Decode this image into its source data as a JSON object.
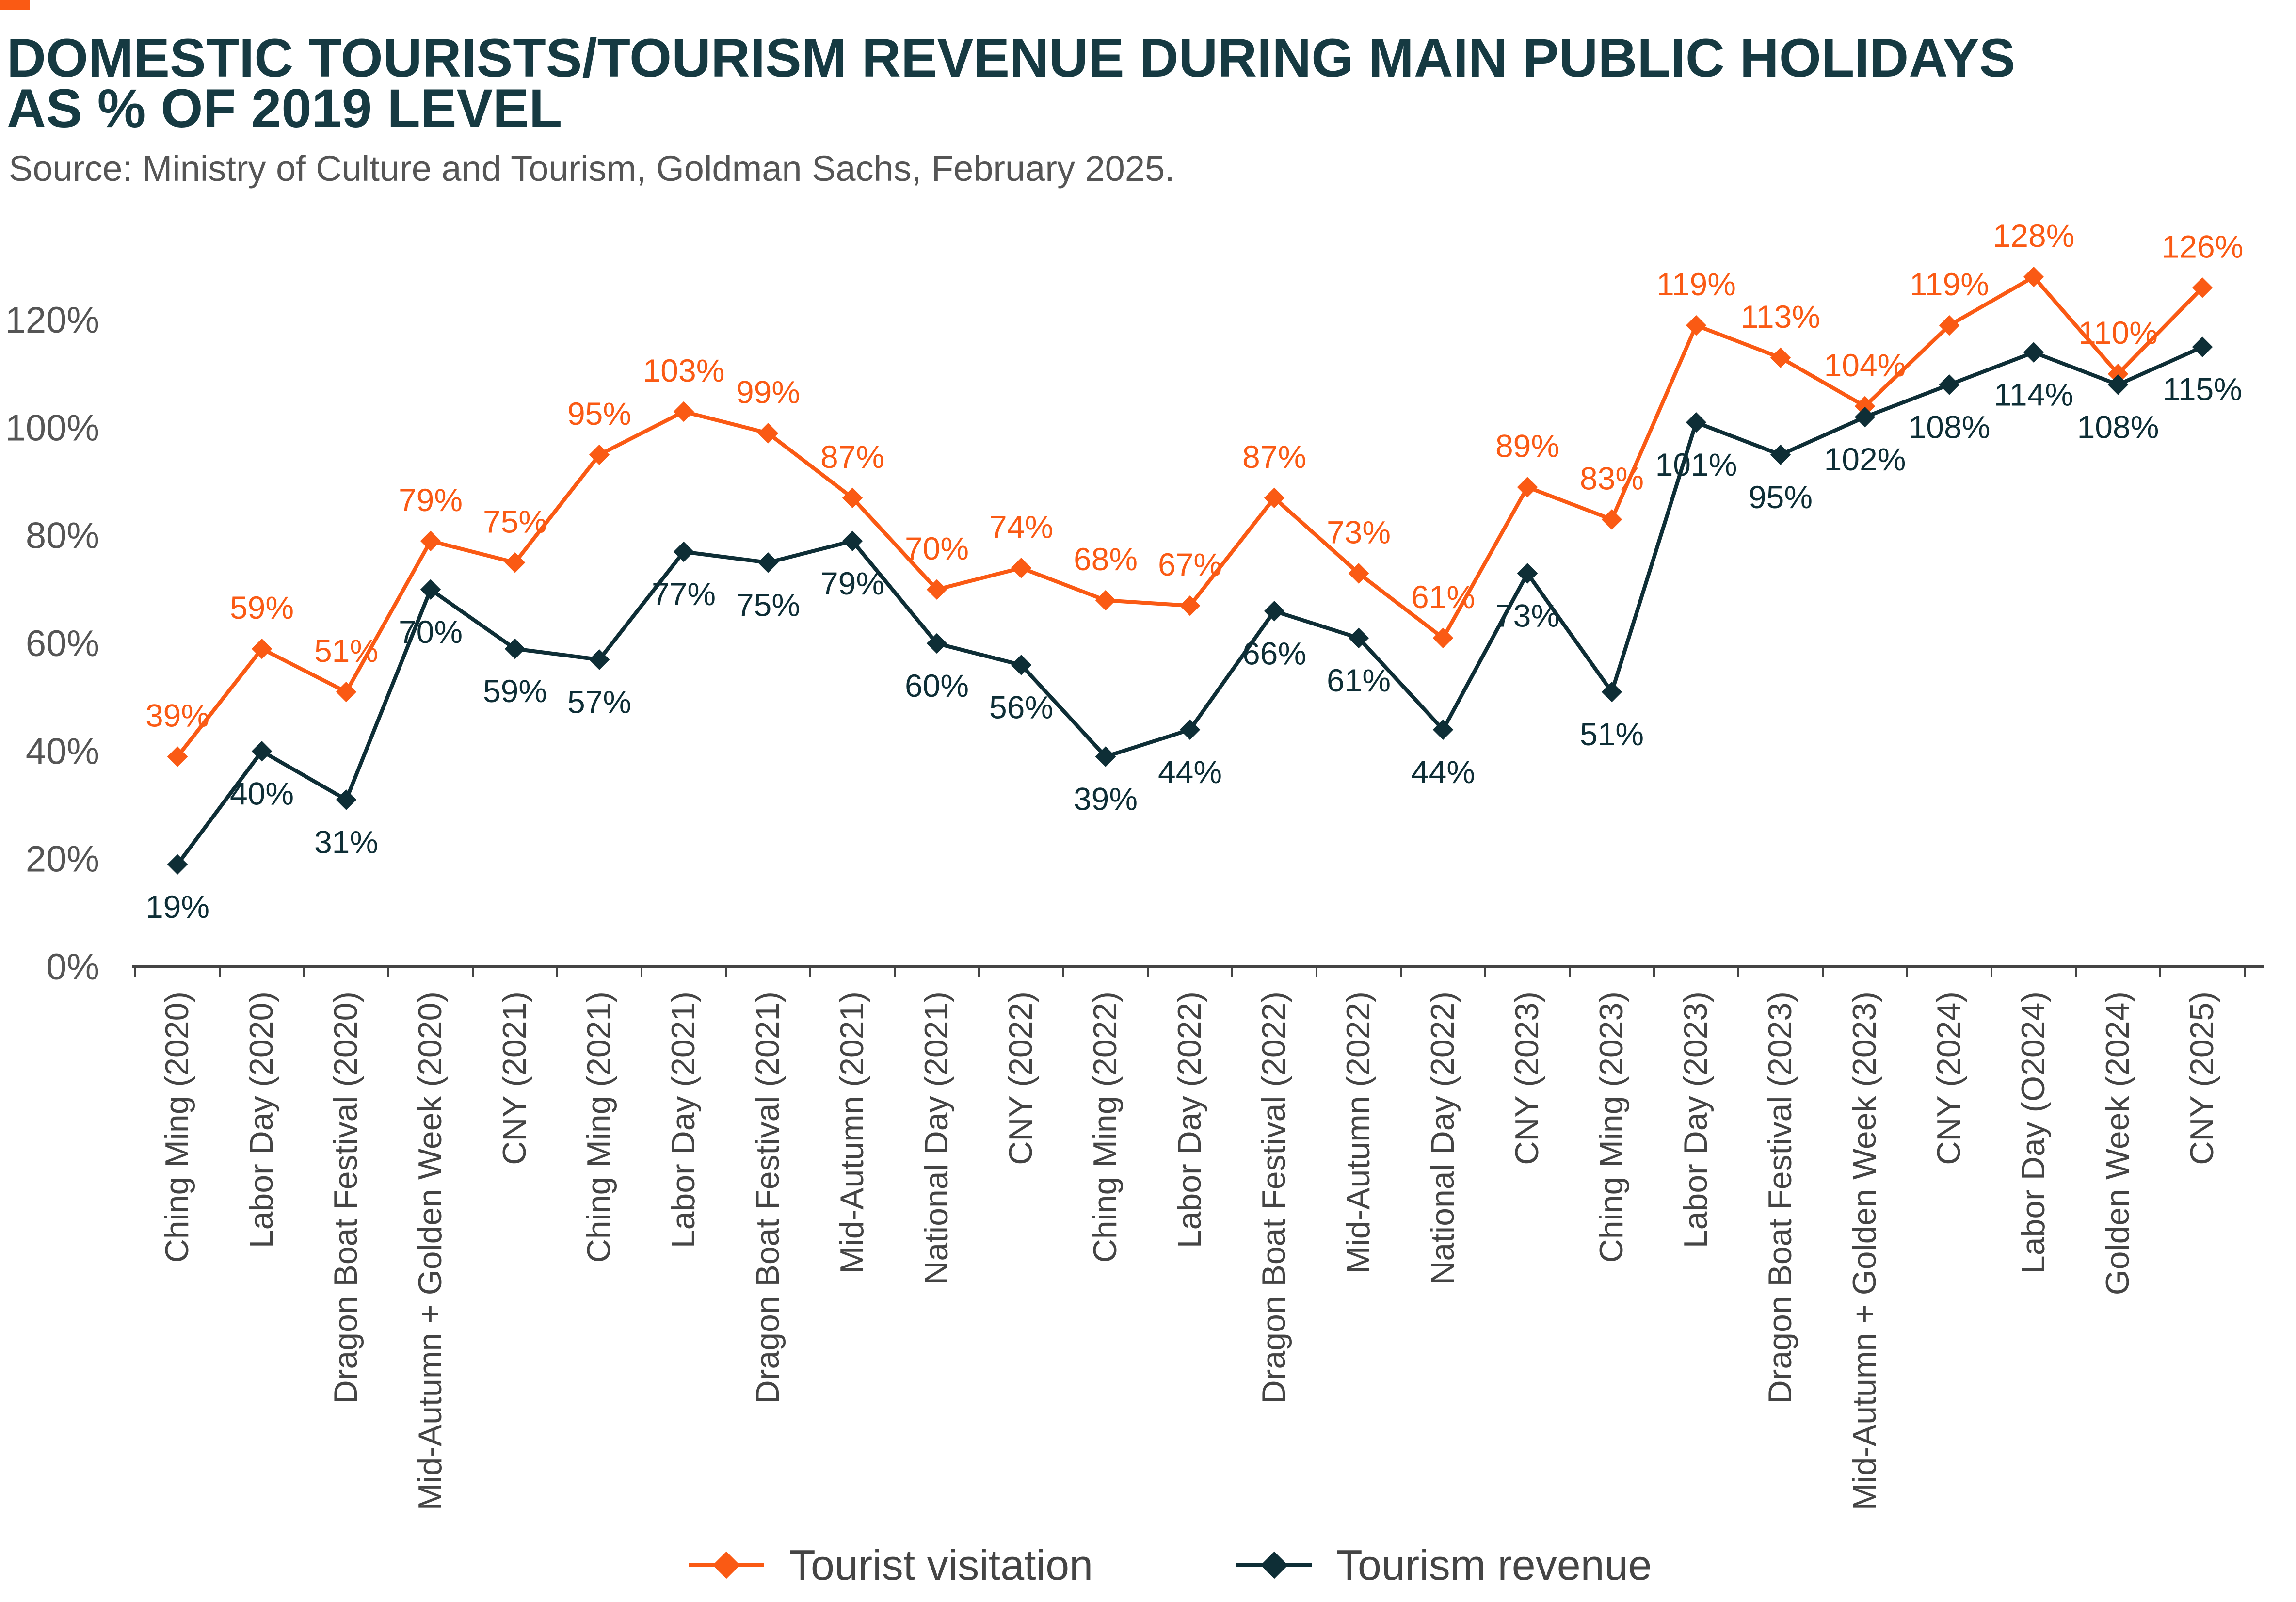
{
  "colors": {
    "accent": "#FA5A14",
    "dark": "#0E2E36",
    "title": "#163A42",
    "subtitle": "#555555",
    "axis": "#444444"
  },
  "chart_data": {
    "type": "line",
    "title_lines": [
      "DOMESTIC TOURISTS/TOURISM REVENUE DURING MAIN PUBLIC HOLIDAYS",
      "AS % OF 2019 LEVEL"
    ],
    "subtitle": "Source: Ministry of Culture and Tourism, Goldman Sachs, February 2025.",
    "xlabel": "",
    "ylabel": "",
    "ylim": [
      0,
      120
    ],
    "yticks": [
      0,
      20,
      40,
      60,
      80,
      100,
      120
    ],
    "ytick_labels": [
      "0%",
      "20%",
      "40%",
      "60%",
      "80%",
      "100%",
      "120%"
    ],
    "grid": false,
    "legend_position": "bottom",
    "categories": [
      "Ching Ming (2020)",
      "Labor Day (2020)",
      "Dragon Boat Festival (2020)",
      "Mid-Autumn + Golden Week (2020)",
      "CNY (2021)",
      "Ching Ming (2021)",
      "Labor Day (2021)",
      "Dragon Boat Festival (2021)",
      "Mid-Autumn (2021)",
      "National Day (2021)",
      "CNY (2022)",
      "Ching Ming (2022)",
      "Labor Day (2022)",
      "Dragon Boat Festival (2022)",
      "Mid-Autumn (2022)",
      "National Day (2022)",
      "CNY (2023)",
      "Ching Ming (2023)",
      "Labor Day (2023)",
      "Dragon Boat Festival (2023)",
      "Mid-Autumn + Golden Week (2023)",
      "CNY (2024)",
      "Labor Day (O2024)",
      "Golden Week (2024)",
      "CNY (2025)"
    ],
    "series": [
      {
        "name": "Tourist visitation",
        "color": "#FA5A14",
        "label_position": "above",
        "values": [
          39,
          59,
          51,
          79,
          75,
          95,
          103,
          99,
          87,
          70,
          74,
          68,
          67,
          87,
          73,
          61,
          89,
          83,
          119,
          113,
          104,
          119,
          128,
          110,
          126
        ],
        "labels": [
          "39%",
          "59%",
          "51%",
          "79%",
          "75%",
          "95%",
          "103%",
          "99%",
          "87%",
          "70%",
          "74%",
          "68%",
          "67%",
          "87%",
          "73%",
          "61%",
          "89%",
          "83%",
          "119%",
          "113%",
          "104%",
          "119%",
          "128%",
          "110%",
          "126%"
        ]
      },
      {
        "name": "Tourism revenue",
        "color": "#0E2E36",
        "label_position": "below",
        "values": [
          19,
          40,
          31,
          70,
          59,
          57,
          77,
          75,
          79,
          60,
          56,
          39,
          44,
          66,
          61,
          44,
          73,
          51,
          101,
          95,
          102,
          108,
          114,
          108,
          115
        ],
        "labels": [
          "19%",
          "40%",
          "31%",
          "70%",
          "59%",
          "57%",
          "77%",
          "75%",
          "79%",
          "60%",
          "56%",
          "39%",
          "44%",
          "66%",
          "61%",
          "44%",
          "73%",
          "51%",
          "101%",
          "95%",
          "102%",
          "108%",
          "114%",
          "108%",
          "115%"
        ]
      }
    ]
  }
}
